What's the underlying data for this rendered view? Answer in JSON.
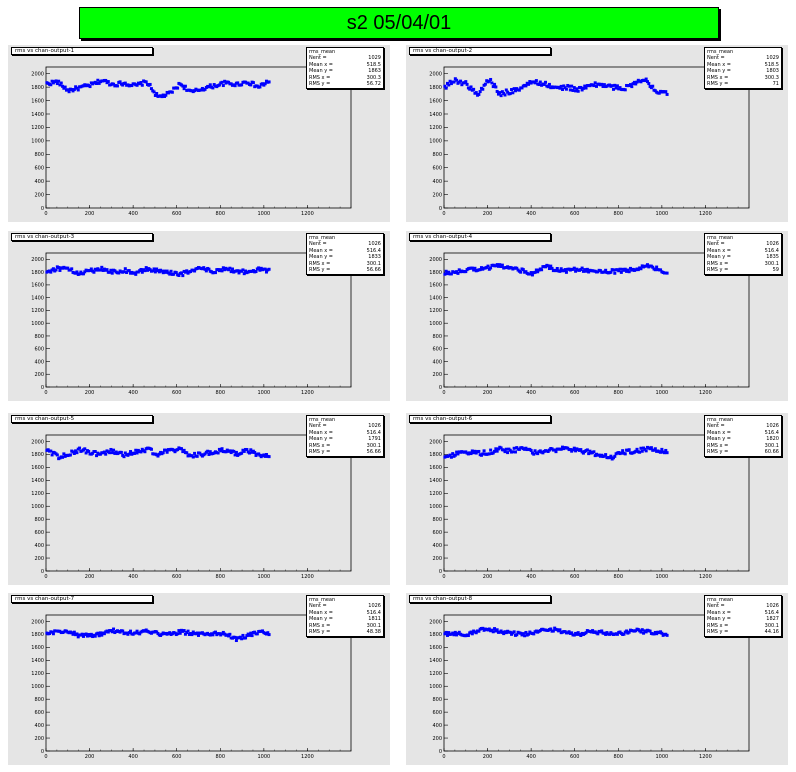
{
  "page_title": "s2  05/04/01",
  "colors": {
    "title_banner": "#00ff00",
    "panel_bg": "#e5e5e5",
    "marker": "#0000ff"
  },
  "chart_data": [
    {
      "type": "scatter",
      "title": "rms vs chan-output-1",
      "xlim": [
        0,
        1400
      ],
      "ylim": [
        0,
        2100
      ],
      "x_ticks": [
        "0",
        "200",
        "400",
        "600",
        "800",
        "1000",
        "1200"
      ],
      "y_ticks": [
        "0",
        "200",
        "400",
        "600",
        "800",
        "1000",
        "1200",
        "1400",
        "1600",
        "1800",
        "2000"
      ],
      "stats": [
        {
          "label": "rms_mean",
          "value": ""
        },
        {
          "label": "Nent =",
          "value": "1029"
        },
        {
          "label": "Mean x =",
          "value": "518.5"
        },
        {
          "label": "Mean y =",
          "value": "1863"
        },
        {
          "label": "RMS x =",
          "value": "300.3"
        },
        {
          "label": "RMS y =",
          "value": "56.72"
        }
      ],
      "y_profile": [
        1850,
        1880,
        1750,
        1790,
        1830,
        1900,
        1840,
        1860,
        1820,
        1880,
        1650,
        1700,
        1850,
        1720,
        1780,
        1820,
        1860,
        1840,
        1880,
        1800,
        1900
      ],
      "y_spread": 30
    },
    {
      "type": "scatter",
      "title": "rms vs chan-output-2",
      "xlim": [
        0,
        1400
      ],
      "ylim": [
        0,
        2100
      ],
      "x_ticks": [
        "0",
        "200",
        "400",
        "600",
        "800",
        "1000",
        "1200"
      ],
      "y_ticks": [
        "0",
        "200",
        "400",
        "600",
        "800",
        "1000",
        "1200",
        "1400",
        "1600",
        "1800",
        "2000"
      ],
      "stats": [
        {
          "label": "rms_mean",
          "value": ""
        },
        {
          "label": "Nent =",
          "value": "1029"
        },
        {
          "label": "Mean x =",
          "value": "518.5"
        },
        {
          "label": "Mean y =",
          "value": "1803"
        },
        {
          "label": "RMS x =",
          "value": "300.3"
        },
        {
          "label": "RMS y =",
          "value": "71"
        }
      ],
      "y_profile": [
        1800,
        1900,
        1850,
        1680,
        1920,
        1700,
        1740,
        1800,
        1880,
        1850,
        1780,
        1800,
        1760,
        1820,
        1840,
        1800,
        1780,
        1860,
        1900,
        1750,
        1720
      ],
      "y_spread": 35
    },
    {
      "type": "scatter",
      "title": "rms vs chan-output-3",
      "xlim": [
        0,
        1400
      ],
      "ylim": [
        0,
        2100
      ],
      "x_ticks": [
        "0",
        "200",
        "400",
        "600",
        "800",
        "1000",
        "1200"
      ],
      "y_ticks": [
        "0",
        "200",
        "400",
        "600",
        "800",
        "1000",
        "1200",
        "1400",
        "1600",
        "1800",
        "2000"
      ],
      "stats": [
        {
          "label": "rms_mean",
          "value": ""
        },
        {
          "label": "Nent =",
          "value": "1026"
        },
        {
          "label": "Mean x =",
          "value": "516.4"
        },
        {
          "label": "Mean y =",
          "value": "1833"
        },
        {
          "label": "RMS x =",
          "value": "300.1"
        },
        {
          "label": "RMS y =",
          "value": "56.66"
        }
      ],
      "y_profile": [
        1800,
        1860,
        1840,
        1780,
        1820,
        1850,
        1800,
        1830,
        1780,
        1850,
        1820,
        1790,
        1760,
        1830,
        1860,
        1800,
        1850,
        1820,
        1800,
        1840,
        1820
      ],
      "y_spread": 30
    },
    {
      "type": "scatter",
      "title": "rms vs chan-output-4",
      "xlim": [
        0,
        1400
      ],
      "ylim": [
        0,
        2100
      ],
      "x_ticks": [
        "0",
        "200",
        "400",
        "600",
        "800",
        "1000",
        "1200"
      ],
      "y_ticks": [
        "0",
        "200",
        "400",
        "600",
        "800",
        "1000",
        "1200",
        "1400",
        "1600",
        "1800",
        "2000"
      ],
      "stats": [
        {
          "label": "rms_mean",
          "value": ""
        },
        {
          "label": "Nent =",
          "value": "1026"
        },
        {
          "label": "Mean x =",
          "value": "516.4"
        },
        {
          "label": "Mean y =",
          "value": "1835"
        },
        {
          "label": "RMS x =",
          "value": "300.1"
        },
        {
          "label": "RMS y =",
          "value": "59"
        }
      ],
      "y_profile": [
        1780,
        1800,
        1830,
        1850,
        1870,
        1900,
        1880,
        1820,
        1780,
        1900,
        1840,
        1820,
        1850,
        1830,
        1820,
        1810,
        1820,
        1840,
        1900,
        1850,
        1800
      ],
      "y_spread": 30
    },
    {
      "type": "scatter",
      "title": "rms vs chan-output-5",
      "xlim": [
        0,
        1400
      ],
      "ylim": [
        0,
        2100
      ],
      "x_ticks": [
        "0",
        "200",
        "400",
        "600",
        "800",
        "1000",
        "1200"
      ],
      "y_ticks": [
        "0",
        "200",
        "400",
        "600",
        "800",
        "1000",
        "1200",
        "1400",
        "1600",
        "1800",
        "2000"
      ],
      "stats": [
        {
          "label": "rms_mean",
          "value": ""
        },
        {
          "label": "Nent =",
          "value": "1026"
        },
        {
          "label": "Mean x =",
          "value": "516.4"
        },
        {
          "label": "Mean y =",
          "value": "1791"
        },
        {
          "label": "RMS x =",
          "value": "300.1"
        },
        {
          "label": "RMS y =",
          "value": "56.66"
        }
      ],
      "y_profile": [
        1900,
        1760,
        1800,
        1880,
        1820,
        1800,
        1860,
        1790,
        1840,
        1880,
        1810,
        1850,
        1870,
        1780,
        1800,
        1840,
        1860,
        1800,
        1860,
        1780,
        1760
      ],
      "y_spread": 35
    },
    {
      "type": "scatter",
      "title": "rms vs chan-output-6",
      "xlim": [
        0,
        1400
      ],
      "ylim": [
        0,
        2100
      ],
      "x_ticks": [
        "0",
        "200",
        "400",
        "600",
        "800",
        "1000",
        "1200"
      ],
      "y_ticks": [
        "0",
        "200",
        "400",
        "600",
        "800",
        "1000",
        "1200",
        "1400",
        "1600",
        "1800",
        "2000"
      ],
      "stats": [
        {
          "label": "rms_mean",
          "value": ""
        },
        {
          "label": "Nent =",
          "value": "1026"
        },
        {
          "label": "Mean x =",
          "value": "516.4"
        },
        {
          "label": "Mean y =",
          "value": "1820"
        },
        {
          "label": "RMS x =",
          "value": "300.1"
        },
        {
          "label": "RMS y =",
          "value": "60.66"
        }
      ],
      "y_profile": [
        1720,
        1800,
        1840,
        1810,
        1830,
        1880,
        1850,
        1900,
        1830,
        1860,
        1870,
        1900,
        1860,
        1830,
        1800,
        1760,
        1840,
        1850,
        1880,
        1860,
        1850
      ],
      "y_spread": 35
    },
    {
      "type": "scatter",
      "title": "rms vs chan-output-7",
      "xlim": [
        0,
        1400
      ],
      "ylim": [
        0,
        2100
      ],
      "x_ticks": [
        "0",
        "200",
        "400",
        "600",
        "800",
        "1000",
        "1200"
      ],
      "y_ticks": [
        "0",
        "200",
        "400",
        "600",
        "800",
        "1000",
        "1200",
        "1400",
        "1600",
        "1800",
        "2000"
      ],
      "stats": [
        {
          "label": "rms_mean",
          "value": ""
        },
        {
          "label": "Nent =",
          "value": "1026"
        },
        {
          "label": "Mean x =",
          "value": "516.4"
        },
        {
          "label": "Mean y =",
          "value": "1811"
        },
        {
          "label": "RMS x =",
          "value": "300.1"
        },
        {
          "label": "RMS y =",
          "value": "48.38"
        }
      ],
      "y_profile": [
        1800,
        1850,
        1840,
        1780,
        1790,
        1800,
        1860,
        1830,
        1820,
        1850,
        1810,
        1800,
        1840,
        1820,
        1800,
        1810,
        1820,
        1730,
        1780,
        1830,
        1820
      ],
      "y_spread": 28
    },
    {
      "type": "scatter",
      "title": "rms vs chan-output-8",
      "xlim": [
        0,
        1400
      ],
      "ylim": [
        0,
        2100
      ],
      "x_ticks": [
        "0",
        "200",
        "400",
        "600",
        "800",
        "1000",
        "1200"
      ],
      "y_ticks": [
        "0",
        "200",
        "400",
        "600",
        "800",
        "1000",
        "1200",
        "1400",
        "1600",
        "1800",
        "2000"
      ],
      "stats": [
        {
          "label": "rms_mean",
          "value": ""
        },
        {
          "label": "Nent =",
          "value": "1026"
        },
        {
          "label": "Mean x =",
          "value": "516.4"
        },
        {
          "label": "Mean y =",
          "value": "1827"
        },
        {
          "label": "RMS x =",
          "value": "300.1"
        },
        {
          "label": "RMS y =",
          "value": "44.16"
        }
      ],
      "y_profile": [
        1800,
        1820,
        1780,
        1860,
        1880,
        1850,
        1820,
        1800,
        1830,
        1860,
        1880,
        1820,
        1800,
        1840,
        1830,
        1800,
        1820,
        1860,
        1840,
        1820,
        1800
      ],
      "y_spread": 28
    }
  ]
}
